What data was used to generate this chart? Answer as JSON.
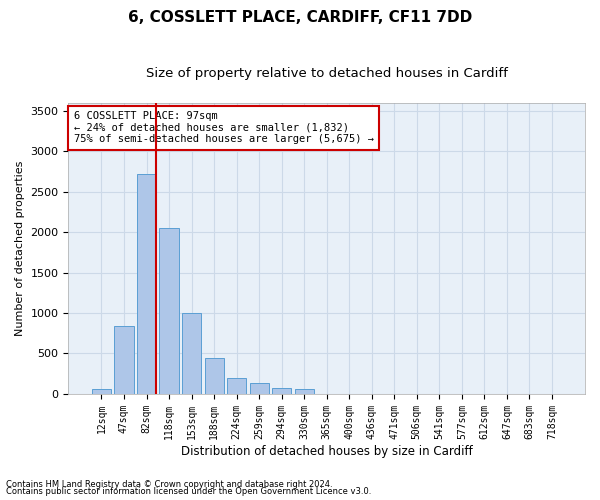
{
  "title1": "6, COSSLETT PLACE, CARDIFF, CF11 7DD",
  "title2": "Size of property relative to detached houses in Cardiff",
  "xlabel": "Distribution of detached houses by size in Cardiff",
  "ylabel": "Number of detached properties",
  "footnote1": "Contains HM Land Registry data © Crown copyright and database right 2024.",
  "footnote2": "Contains public sector information licensed under the Open Government Licence v3.0.",
  "categories": [
    "12sqm",
    "47sqm",
    "82sqm",
    "118sqm",
    "153sqm",
    "188sqm",
    "224sqm",
    "259sqm",
    "294sqm",
    "330sqm",
    "365sqm",
    "400sqm",
    "436sqm",
    "471sqm",
    "506sqm",
    "541sqm",
    "577sqm",
    "612sqm",
    "647sqm",
    "683sqm",
    "718sqm"
  ],
  "values": [
    65,
    840,
    2720,
    2050,
    1000,
    450,
    200,
    140,
    75,
    60,
    0,
    0,
    0,
    0,
    0,
    0,
    0,
    0,
    0,
    0,
    0
  ],
  "bar_color": "#aec6e8",
  "bar_edge_color": "#5a9fd4",
  "highlight_line_color": "#cc0000",
  "annotation_box_text_line1": "6 COSSLETT PLACE: 97sqm",
  "annotation_box_text_line2": "← 24% of detached houses are smaller (1,832)",
  "annotation_box_text_line3": "75% of semi-detached houses are larger (5,675) →",
  "annotation_box_color": "#cc0000",
  "annotation_box_bg": "#ffffff",
  "ylim": [
    0,
    3600
  ],
  "yticks": [
    0,
    500,
    1000,
    1500,
    2000,
    2500,
    3000,
    3500
  ],
  "grid_color": "#ccd9e8",
  "bg_color": "#e8f0f8",
  "title1_fontsize": 11,
  "title2_fontsize": 9.5,
  "bar_width": 0.85
}
